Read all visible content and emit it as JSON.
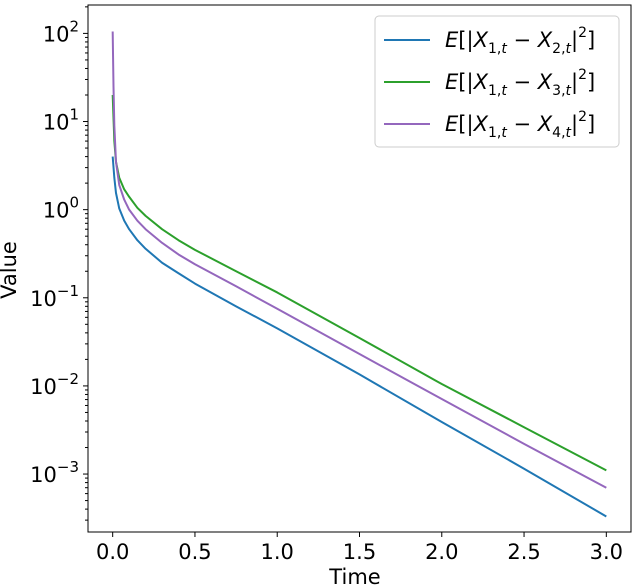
{
  "chart_data": {
    "type": "line",
    "xlabel": "Time",
    "ylabel": "Value",
    "xlim": [
      -0.15,
      3.15
    ],
    "ylim": [
      0.00022,
      210
    ],
    "yscale": "log",
    "grid": false,
    "legend_position": "top-right",
    "x_ticks": [
      {
        "value": 0.0,
        "label": "0.0"
      },
      {
        "value": 0.5,
        "label": "0.5"
      },
      {
        "value": 1.0,
        "label": "1.0"
      },
      {
        "value": 1.5,
        "label": "1.5"
      },
      {
        "value": 2.0,
        "label": "2.0"
      },
      {
        "value": 2.5,
        "label": "2.5"
      },
      {
        "value": 3.0,
        "label": "3.0"
      }
    ],
    "y_ticks": [
      {
        "value": 0.001,
        "base": "10",
        "exp": "−3"
      },
      {
        "value": 0.01,
        "base": "10",
        "exp": "−2"
      },
      {
        "value": 0.1,
        "base": "10",
        "exp": "−1"
      },
      {
        "value": 1,
        "base": "10",
        "exp": "0"
      },
      {
        "value": 10,
        "base": "10",
        "exp": "1"
      },
      {
        "value": 100,
        "base": "10",
        "exp": "2"
      }
    ],
    "series": [
      {
        "name": "E[|X1,t − X2,t|²]",
        "legend": {
          "j": "2"
        },
        "color": "#1f77b4",
        "x": [
          0.0,
          0.01,
          0.02,
          0.04,
          0.07,
          0.1,
          0.15,
          0.2,
          0.3,
          0.4,
          0.5,
          0.75,
          1.0,
          1.5,
          2.0,
          2.5,
          3.0
        ],
        "y": [
          4.0,
          2.3,
          1.55,
          1.03,
          0.75,
          0.6,
          0.45,
          0.36,
          0.25,
          0.19,
          0.145,
          0.08,
          0.045,
          0.0135,
          0.0039,
          0.00115,
          0.00033
        ]
      },
      {
        "name": "E[|X1,t − X3,t|²]",
        "legend": {
          "j": "3"
        },
        "color": "#2ca02c",
        "x": [
          0.0,
          0.01,
          0.02,
          0.04,
          0.07,
          0.1,
          0.15,
          0.2,
          0.3,
          0.4,
          0.5,
          0.75,
          1.0,
          1.5,
          2.0,
          2.5,
          3.0
        ],
        "y": [
          20.0,
          6.0,
          3.5,
          2.3,
          1.7,
          1.4,
          1.05,
          0.85,
          0.6,
          0.45,
          0.35,
          0.2,
          0.115,
          0.035,
          0.0105,
          0.0034,
          0.0011
        ]
      },
      {
        "name": "E[|X1,t − X4,t|²]",
        "legend": {
          "j": "4"
        },
        "color": "#9467bd",
        "x": [
          0.0,
          0.005,
          0.01,
          0.02,
          0.04,
          0.07,
          0.1,
          0.15,
          0.2,
          0.3,
          0.4,
          0.5,
          0.75,
          1.0,
          1.5,
          2.0,
          2.5,
          3.0
        ],
        "y": [
          105,
          25,
          9.0,
          3.5,
          1.9,
          1.3,
          1.0,
          0.75,
          0.6,
          0.42,
          0.31,
          0.24,
          0.135,
          0.075,
          0.023,
          0.0071,
          0.0022,
          0.0007
        ]
      }
    ]
  }
}
